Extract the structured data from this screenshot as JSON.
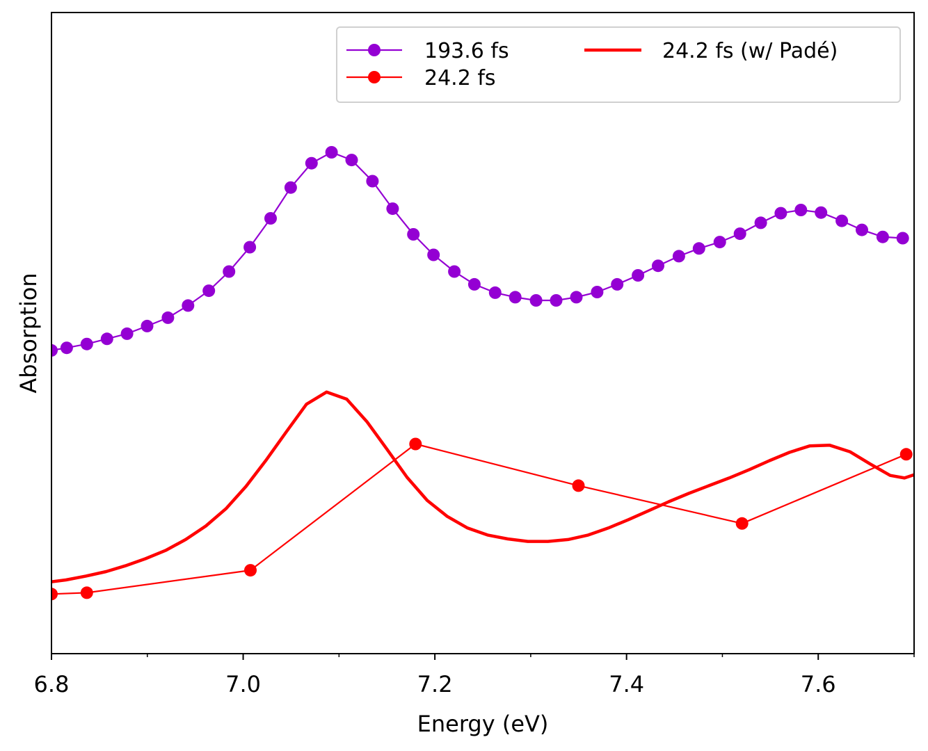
{
  "chart_data": {
    "type": "line",
    "title": "",
    "xlabel": "Energy (eV)",
    "ylabel": "Absorption",
    "xlim": [
      6.8,
      7.7
    ],
    "ylim": [
      0,
      1
    ],
    "xticks": [
      "6.8",
      "7.0",
      "7.2",
      "7.4",
      "7.6"
    ],
    "xtick_values": [
      6.8,
      7.0,
      7.2,
      7.4,
      7.6
    ],
    "minor_xtick_values": [
      6.9,
      7.1,
      7.3,
      7.5,
      7.7
    ],
    "yticks": [],
    "grid": false,
    "legend_position": "top-right",
    "series": [
      {
        "name": "193.6 fs",
        "color": "#9400D3",
        "style": "line-markers",
        "x": [
          6.8,
          6.8159,
          6.8369,
          6.8579,
          6.8788,
          6.8998,
          6.9215,
          6.9425,
          6.9642,
          6.9852,
          7.0069,
          7.0286,
          7.0496,
          7.0713,
          7.0922,
          7.1132,
          7.1349,
          7.1559,
          7.1776,
          7.1986,
          7.2203,
          7.2412,
          7.2629,
          7.2839,
          7.3056,
          7.3266,
          7.3476,
          7.3693,
          7.3902,
          7.4119,
          7.4329,
          7.4546,
          7.4756,
          7.4973,
          7.5183,
          7.54,
          7.5609,
          7.5819,
          7.6029,
          7.6246,
          7.6456,
          7.6673,
          7.6882
        ],
        "y": [
          0.473,
          0.477,
          0.483,
          0.491,
          0.499,
          0.511,
          0.524,
          0.543,
          0.566,
          0.596,
          0.634,
          0.679,
          0.727,
          0.765,
          0.782,
          0.77,
          0.737,
          0.694,
          0.654,
          0.622,
          0.596,
          0.576,
          0.563,
          0.556,
          0.551,
          0.551,
          0.556,
          0.564,
          0.576,
          0.59,
          0.605,
          0.62,
          0.632,
          0.642,
          0.655,
          0.672,
          0.687,
          0.692,
          0.688,
          0.675,
          0.661,
          0.65,
          0.648
        ]
      },
      {
        "name": "24.2 fs",
        "color": "#FF0000",
        "style": "line-markers",
        "x": [
          6.8,
          6.8369,
          7.0076,
          7.1798,
          7.3498,
          7.5205,
          7.6918
        ],
        "y": [
          0.093,
          0.095,
          0.13,
          0.327,
          0.262,
          0.203,
          0.311
        ]
      },
      {
        "name": "24.2 fs (w/ Padé)",
        "color": "#FF0000",
        "style": "thick-line",
        "x": [
          6.8,
          6.815,
          6.836,
          6.857,
          6.877,
          6.898,
          6.919,
          6.94,
          6.961,
          6.982,
          7.003,
          7.024,
          7.045,
          7.066,
          7.087,
          7.108,
          7.129,
          7.15,
          7.171,
          7.192,
          7.213,
          7.234,
          7.255,
          7.276,
          7.297,
          7.318,
          7.339,
          7.36,
          7.381,
          7.402,
          7.423,
          7.444,
          7.465,
          7.486,
          7.507,
          7.528,
          7.549,
          7.57,
          7.591,
          7.612,
          7.633,
          7.654,
          7.675,
          7.69,
          7.7
        ],
        "y": [
          0.112,
          0.115,
          0.121,
          0.128,
          0.137,
          0.148,
          0.161,
          0.178,
          0.199,
          0.226,
          0.261,
          0.302,
          0.346,
          0.389,
          0.408,
          0.397,
          0.362,
          0.319,
          0.275,
          0.239,
          0.214,
          0.196,
          0.185,
          0.179,
          0.175,
          0.175,
          0.178,
          0.185,
          0.196,
          0.209,
          0.223,
          0.237,
          0.25,
          0.262,
          0.274,
          0.287,
          0.301,
          0.314,
          0.324,
          0.325,
          0.315,
          0.296,
          0.278,
          0.274,
          0.279
        ]
      }
    ],
    "legend": {
      "entries": [
        "193.6 fs",
        "24.2 fs",
        "24.2 fs (w/ Padé)"
      ],
      "columns": 2
    }
  }
}
